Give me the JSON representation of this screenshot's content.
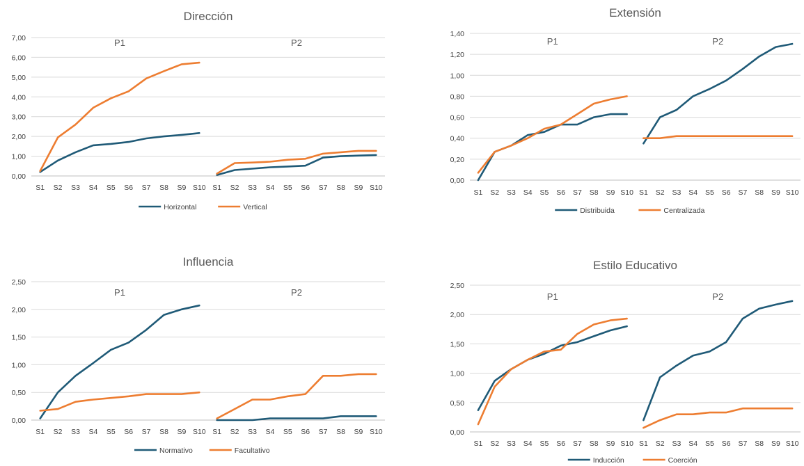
{
  "colors": {
    "series1": "#1f5a77",
    "series2": "#ed7d31"
  },
  "chart_data": [
    {
      "type": "line",
      "title": "Dirección",
      "panels": [
        "P1",
        "P2"
      ],
      "categories": [
        "S1",
        "S2",
        "S3",
        "S4",
        "S5",
        "S6",
        "S7",
        "S8",
        "S9",
        "S10"
      ],
      "yticks": [
        "0,00",
        "1,00",
        "2,00",
        "3,00",
        "4,00",
        "5,00",
        "6,00",
        "7,00"
      ],
      "ylim": [
        0,
        7
      ],
      "grid": true,
      "legend": "bottom",
      "series": [
        {
          "name": "Horizontal",
          "color": "#1f5a77",
          "P1": [
            0.2,
            0.78,
            1.2,
            1.55,
            1.62,
            1.72,
            1.9,
            2.0,
            2.08,
            2.17
          ],
          "P2": [
            0.05,
            0.3,
            0.37,
            0.44,
            0.48,
            0.52,
            0.93,
            1.0,
            1.03,
            1.06
          ]
        },
        {
          "name": "Vertical",
          "color": "#ed7d31",
          "P1": [
            0.25,
            1.95,
            2.6,
            3.45,
            3.93,
            4.28,
            4.93,
            5.3,
            5.65,
            5.73
          ],
          "P2": [
            0.12,
            0.65,
            0.68,
            0.72,
            0.82,
            0.87,
            1.13,
            1.2,
            1.27,
            1.27
          ]
        }
      ]
    },
    {
      "type": "line",
      "title": "Extensión",
      "panels": [
        "P1",
        "P2"
      ],
      "categories": [
        "S1",
        "S2",
        "S3",
        "S4",
        "S5",
        "S6",
        "S7",
        "S8",
        "S9",
        "S10"
      ],
      "yticks": [
        "0,00",
        "0,20",
        "0,40",
        "0,60",
        "0,80",
        "1,00",
        "1,20",
        "1,40"
      ],
      "ylim": [
        0,
        1.4
      ],
      "grid": true,
      "legend": "bottom",
      "series": [
        {
          "name": "Distribuida",
          "color": "#1f5a77",
          "P1": [
            0.0,
            0.27,
            0.33,
            0.43,
            0.46,
            0.53,
            0.53,
            0.6,
            0.63,
            0.63
          ],
          "P2": [
            0.35,
            0.6,
            0.67,
            0.8,
            0.87,
            0.95,
            1.06,
            1.18,
            1.27,
            1.3
          ]
        },
        {
          "name": "Centralizada",
          "color": "#ed7d31",
          "P1": [
            0.07,
            0.27,
            0.33,
            0.4,
            0.49,
            0.53,
            0.63,
            0.73,
            0.77,
            0.8
          ],
          "P2": [
            0.4,
            0.4,
            0.42,
            0.42,
            0.42,
            0.42,
            0.42,
            0.42,
            0.42,
            0.42
          ]
        }
      ]
    },
    {
      "type": "line",
      "title": "Influencia",
      "panels": [
        "P1",
        "P2"
      ],
      "categories": [
        "S1",
        "S2",
        "S3",
        "S4",
        "S5",
        "S6",
        "S7",
        "S8",
        "S9",
        "S10"
      ],
      "yticks": [
        "0,00",
        "0,50",
        "1,00",
        "1,50",
        "2,00",
        "2,50"
      ],
      "ylim": [
        0,
        2.5
      ],
      "grid": true,
      "legend": "bottom",
      "series": [
        {
          "name": "Normativo",
          "color": "#1f5a77",
          "P1": [
            0.03,
            0.5,
            0.8,
            1.03,
            1.27,
            1.4,
            1.63,
            1.9,
            2.0,
            2.07
          ],
          "P2": [
            0.0,
            0.0,
            0.0,
            0.03,
            0.03,
            0.03,
            0.03,
            0.07,
            0.07,
            0.07
          ]
        },
        {
          "name": "Facultativo",
          "color": "#ed7d31",
          "P1": [
            0.17,
            0.2,
            0.33,
            0.37,
            0.4,
            0.43,
            0.47,
            0.47,
            0.47,
            0.5
          ],
          "P2": [
            0.03,
            0.2,
            0.37,
            0.37,
            0.43,
            0.47,
            0.8,
            0.8,
            0.83,
            0.83
          ]
        }
      ]
    },
    {
      "type": "line",
      "title": "Estilo Educativo",
      "panels": [
        "P1",
        "P2"
      ],
      "categories": [
        "S1",
        "S2",
        "S3",
        "S4",
        "S5",
        "S6",
        "S7",
        "S8",
        "S9",
        "S10"
      ],
      "yticks": [
        "0,00",
        "0,50",
        "1,00",
        "1,50",
        "2,00",
        "2,50"
      ],
      "ylim": [
        0,
        2.5
      ],
      "grid": true,
      "legend": "bottom",
      "series": [
        {
          "name": "Inducción",
          "color": "#1f5a77",
          "P1": [
            0.37,
            0.87,
            1.07,
            1.23,
            1.33,
            1.47,
            1.53,
            1.63,
            1.73,
            1.8
          ],
          "P2": [
            0.2,
            0.93,
            1.13,
            1.3,
            1.37,
            1.53,
            1.93,
            2.1,
            2.17,
            2.23
          ]
        },
        {
          "name": "Coerción",
          "color": "#ed7d31",
          "P1": [
            0.13,
            0.77,
            1.07,
            1.23,
            1.37,
            1.4,
            1.67,
            1.83,
            1.9,
            1.93
          ],
          "P2": [
            0.07,
            0.2,
            0.3,
            0.3,
            0.33,
            0.33,
            0.4,
            0.4,
            0.4,
            0.4
          ]
        }
      ]
    }
  ]
}
